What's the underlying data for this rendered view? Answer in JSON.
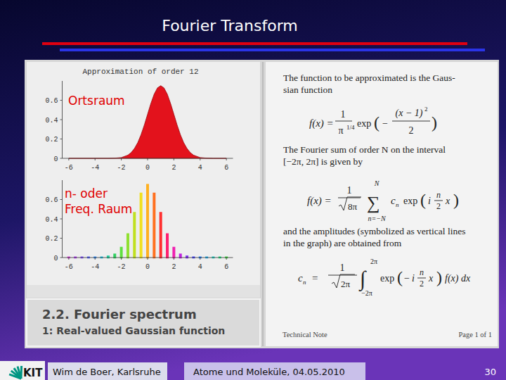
{
  "slide": {
    "title": "Fourier Transform",
    "footer": {
      "logo": "KIT",
      "author": "Wim de Boer, Karlsruhe",
      "event": "Atome und Moleküle,  04.05.2010",
      "page": "30"
    }
  },
  "caption": {
    "heading": "2.2. Fourier spectrum",
    "subheading": "1: Real-valued Gaussian function"
  },
  "note": {
    "text1": [
      "The function to be approximated is the Gaus-",
      "sian function"
    ],
    "formula1": {
      "lhs": "f(x) =",
      "num": "1",
      "den": "π",
      "den_exp": "1/4",
      "fn": "exp",
      "open": "(",
      "minus": "−",
      "inner_num": "(x − 1)",
      "inner_exp": "2",
      "inner_den": "2",
      "close": ")"
    },
    "text2": [
      "The Fourier sum of order N on the interval",
      "[−2π, 2π] is given by"
    ],
    "formula2": {
      "lhs": "f(x) =",
      "num": "1",
      "den": "8π",
      "sum": "∑",
      "upper": "N",
      "lower": "n=−N",
      "coef": "c",
      "coef_sub": "n",
      "fn": "exp",
      "open": "(",
      "i": "i",
      "frac_num": "n",
      "frac_den": "2",
      "var": "x",
      "close": ")"
    },
    "text3": [
      "and the amplitudes (symbolized as vertical lines",
      "in the graph) are obtained from"
    ],
    "formula3": {
      "coef": "c",
      "coef_sub": "n",
      "eq": "=",
      "num": "1",
      "den": "2π",
      "int": "∫",
      "upper": "2π",
      "lower": "−2π",
      "fn": "exp",
      "open": "(",
      "minus": "−",
      "i": "i",
      "frac_num": "n",
      "frac_den": "2",
      "var": "x",
      "close": ")",
      "tail": "f(x) dx"
    },
    "footer_left": "Technical Note",
    "footer_right": "Page 1 of 1"
  },
  "chart_data": [
    {
      "type": "area",
      "title": "Approximation of order 12",
      "annotation": [
        "Ortsraum"
      ],
      "color": "#e3121c",
      "grid": false,
      "x": [
        -6,
        -3,
        -2.5,
        -2,
        -1.5,
        -1.25,
        -1,
        -0.75,
        -0.5,
        -0.25,
        0,
        0.25,
        0.5,
        0.75,
        1,
        1.25,
        1.5,
        1.75,
        2,
        2.25,
        2.5,
        2.75,
        3,
        3.25,
        3.5,
        4,
        4.5,
        5,
        6
      ],
      "values": [
        0,
        0,
        0.002,
        0.008,
        0.033,
        0.06,
        0.102,
        0.162,
        0.244,
        0.344,
        0.456,
        0.567,
        0.663,
        0.728,
        0.751,
        0.728,
        0.663,
        0.567,
        0.456,
        0.344,
        0.244,
        0.162,
        0.102,
        0.06,
        0.033,
        0.008,
        0.002,
        0,
        0
      ],
      "xlim": [
        -6.5,
        6.5
      ],
      "ylim": [
        0,
        0.8
      ],
      "xticks": [
        -6,
        -4,
        -2,
        0,
        2,
        4,
        6
      ],
      "yticks": [
        0,
        0.2,
        0.4,
        0.6
      ]
    },
    {
      "type": "bar",
      "annotation": [
        "n- oder",
        "Freq. Raum"
      ],
      "grid": false,
      "x": [
        -6,
        -5.5,
        -5,
        -4.5,
        -4,
        -3.5,
        -3,
        -2.5,
        -2,
        -1.5,
        -1,
        -0.5,
        0,
        0.5,
        1,
        1.5,
        2,
        2.5,
        3,
        3.5,
        4,
        4.5,
        5,
        5.5,
        6
      ],
      "values": [
        0,
        0,
        0,
        0,
        0,
        0,
        0.01,
        0.03,
        0.1,
        0.24,
        0.46,
        0.66,
        0.75,
        0.66,
        0.46,
        0.24,
        0.1,
        0.03,
        0.01,
        0,
        0,
        0,
        0,
        0,
        0
      ],
      "colors": [
        "#e040e0",
        "#b040f0",
        "#8050ff",
        "#5060ff",
        "#3090ff",
        "#20c0e0",
        "#20d0a0",
        "#30d060",
        "#60e040",
        "#90e030",
        "#c0e020",
        "#f0e020",
        "#ffb020",
        "#ff7020",
        "#ff3030",
        "#ff2070",
        "#f020b0",
        "#c020e0",
        "#8030f0",
        "#4040ff",
        "#2080ff",
        "#20b0f0",
        "#20d0c0",
        "#20e080",
        "#40e040"
      ],
      "xlim": [
        -6.5,
        6.5
      ],
      "ylim": [
        0,
        0.8
      ],
      "xticks": [
        -6,
        -4,
        -2,
        0,
        2,
        4,
        6
      ],
      "yticks": [
        0,
        0.2,
        0.4,
        0.6
      ]
    }
  ]
}
